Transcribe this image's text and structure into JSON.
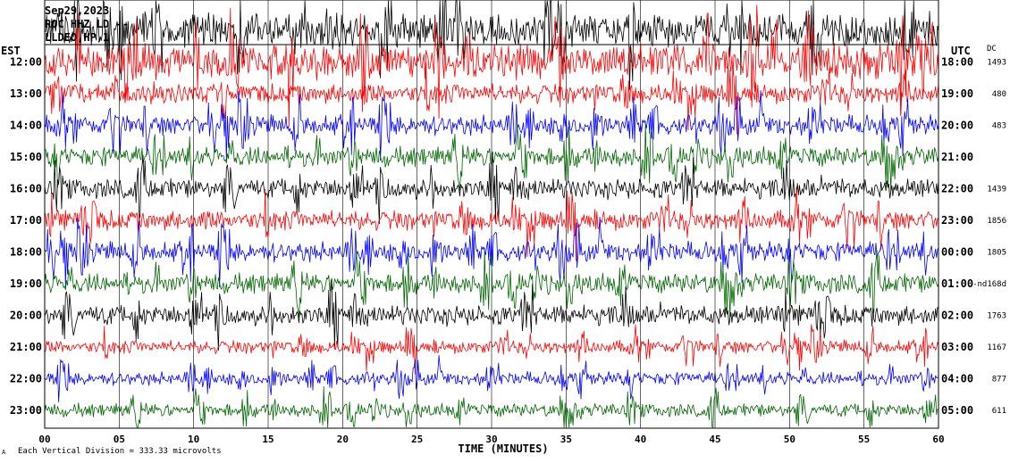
{
  "header": {
    "date": "Sep29,2023",
    "station": "ROC HHZ LD --",
    "filter": "LLDEO,HP,1"
  },
  "footer": {
    "scale_note": "Each Vertical Division = 333.33 microvolts",
    "corner_mark": "A"
  },
  "chart_data": {
    "type": "line",
    "subtype": "helicorder",
    "xlabel": "TIME (MINUTES)",
    "left_axis_label": "EST",
    "right_axis_label": "UTC",
    "dc_label": "DC",
    "xlim": [
      0,
      60
    ],
    "x_ticks": [
      "00",
      "05",
      "10",
      "15",
      "20",
      "25",
      "30",
      "35",
      "40",
      "45",
      "50",
      "55",
      "60"
    ],
    "grid": "vertical lines every 5 minutes",
    "trace_colors": [
      "#000000",
      "#ff0000",
      "#0000ff",
      "#006600"
    ],
    "rows": [
      {
        "est": "",
        "utc": "",
        "dc": "",
        "color": "#000000",
        "amplitude": "clipped"
      },
      {
        "est": "12:00",
        "utc": "18:00",
        "dc": "1493",
        "color": "#ff0000",
        "amplitude": "clipped"
      },
      {
        "est": "13:00",
        "utc": "19:00",
        "dc": "480",
        "color": "#ff0000",
        "amplitude": "high"
      },
      {
        "est": "14:00",
        "utc": "20:00",
        "dc": "483",
        "color": "#0000ff",
        "amplitude": "high"
      },
      {
        "est": "15:00",
        "utc": "21:00",
        "dc": "",
        "color": "#006600",
        "amplitude": "high"
      },
      {
        "est": "16:00",
        "utc": "22:00",
        "dc": "1439",
        "color": "#000000",
        "amplitude": "high"
      },
      {
        "est": "17:00",
        "utc": "23:00",
        "dc": "1856",
        "color": "#ff0000",
        "amplitude": "high"
      },
      {
        "est": "18:00",
        "utc": "00:00",
        "dc": "1805",
        "color": "#0000ff",
        "amplitude": "high"
      },
      {
        "est": "19:00",
        "utc": "01:00",
        "dc": "-nd168d",
        "color": "#006600",
        "amplitude": "high"
      },
      {
        "est": "20:00",
        "utc": "02:00",
        "dc": "1763",
        "color": "#000000",
        "amplitude": "high"
      },
      {
        "est": "21:00",
        "utc": "03:00",
        "dc": "1167",
        "color": "#ff0000",
        "amplitude": "medium"
      },
      {
        "est": "22:00",
        "utc": "04:00",
        "dc": "877",
        "color": "#0000ff",
        "amplitude": "medium"
      },
      {
        "est": "23:00",
        "utc": "05:00",
        "dc": "611",
        "color": "#006600",
        "amplitude": "medium"
      }
    ]
  }
}
